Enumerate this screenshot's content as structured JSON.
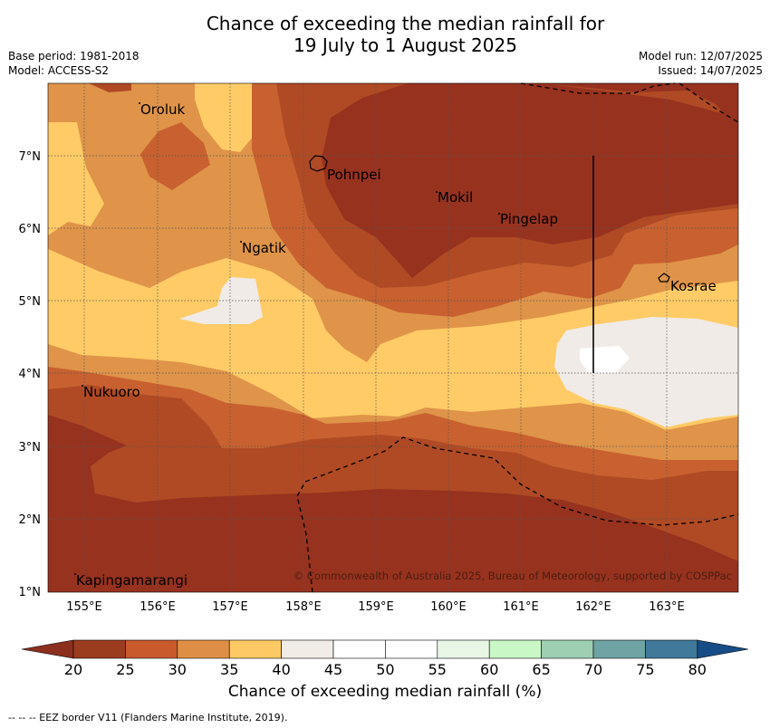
{
  "title": {
    "line1": "Chance of exceeding the median rainfall for",
    "line2": "19 July to 1 August 2025"
  },
  "meta": {
    "base_period": "Base period: 1981-2018",
    "model": "Model: ACCESS-S2",
    "model_run": "Model run: 12/07/2025",
    "issued": "Issued: 14/07/2025"
  },
  "map": {
    "lon_ticks": [
      "155°E",
      "156°E",
      "157°E",
      "158°E",
      "159°E",
      "160°E",
      "161°E",
      "162°E",
      "163°E"
    ],
    "lat_ticks": [
      "7°N",
      "6°N",
      "5°N",
      "4°N",
      "3°N",
      "2°N",
      "1°N"
    ],
    "places": [
      {
        "name": "Oroluk"
      },
      {
        "name": "Pohnpei"
      },
      {
        "name": "Mokil"
      },
      {
        "name": "Pingelap"
      },
      {
        "name": "Ngatik"
      },
      {
        "name": "Kosrae"
      },
      {
        "name": "Nukuoro"
      },
      {
        "name": "Kapingamarangi"
      }
    ],
    "copyright": "© Commonwealth of Australia 2025, Bureau of Meteorology, supported by COSPPac"
  },
  "colorbar": {
    "labels": [
      "20",
      "25",
      "30",
      "35",
      "40",
      "45",
      "50",
      "55",
      "60",
      "65",
      "70",
      "75",
      "80"
    ],
    "colors": [
      "#9c3c1f",
      "#c85a2c",
      "#df8f45",
      "#fdc964",
      "#f1ece6",
      "#ffffff",
      "#ffffff",
      "#e8f6e6",
      "#c9f7c6",
      "#9ecfb2",
      "#6fa3a4",
      "#40799a"
    ],
    "low_color": "#8c2f1f",
    "high_color": "#174d86",
    "title": "Chance of exceeding median rainfall (%)"
  },
  "palette": {
    "dark": "#97321f",
    "brown": "#b04a24",
    "orange": "#c8612f",
    "tan": "#df9449",
    "yellow": "#fecb66",
    "white": "#f0ebe6"
  },
  "footnote": "--  --  -- EEZ border V11 (Flanders Marine Institute, 2019)."
}
